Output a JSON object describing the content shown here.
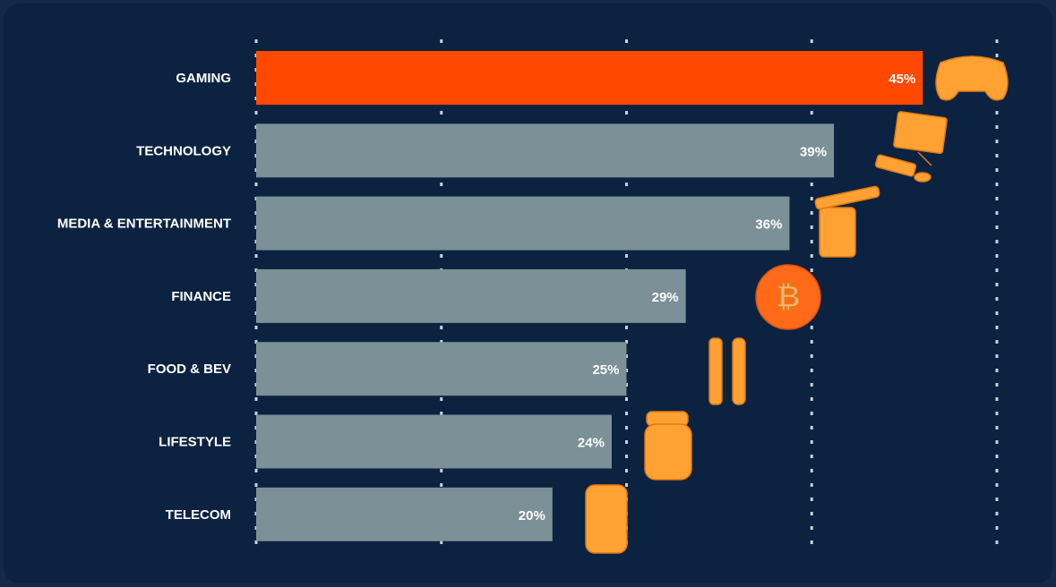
{
  "chart_data": {
    "type": "bar",
    "orientation": "horizontal",
    "categories": [
      "GAMING",
      "TECHNOLOGY",
      "MEDIA & ENTERTAINMENT",
      "FINANCE",
      "FOOD & BEV",
      "LIFESTYLE",
      "TELECOM"
    ],
    "values": [
      45,
      39,
      36,
      29,
      25,
      24,
      20
    ],
    "value_labels": [
      "45%",
      "39%",
      "36%",
      "29%",
      "25%",
      "24%",
      "20%"
    ],
    "colors": [
      "#ff4800",
      "#7b9097",
      "#7b9097",
      "#7b9097",
      "#7b9097",
      "#7b9097",
      "#7b9097"
    ],
    "xlim": [
      0,
      50
    ],
    "xticks": [
      0,
      12.5,
      25,
      37.5,
      50
    ],
    "grid": true
  }
}
